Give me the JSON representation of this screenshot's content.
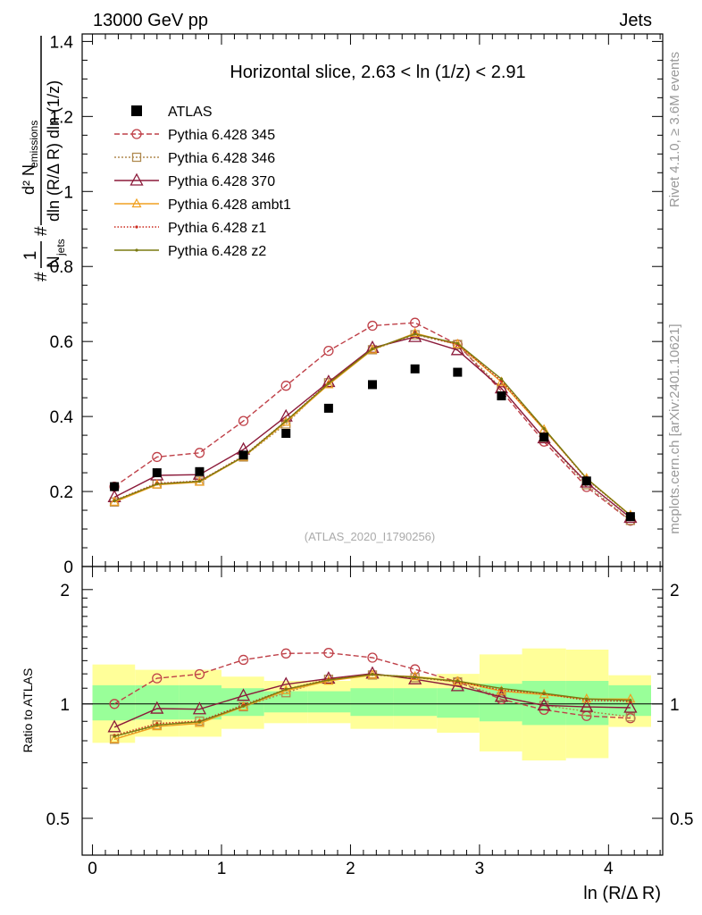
{
  "header": {
    "left": "13000 GeV pp",
    "right": "Jets"
  },
  "side_labels": {
    "rivet": "Rivet 4.1.0, ≥ 3.6M events",
    "mcplots": "mcplots.cern.ch [arXiv:2401.10621]"
  },
  "chart_data": {
    "type": "scatter",
    "title": "Horizontal slice, 2.63 < ln (1/z) < 2.91",
    "watermark": "(ATLAS_2020_I1790256)",
    "xlabel": "ln (R/Δ R)",
    "ylabel": {
      "prefix": "#",
      "frac1_num": "1",
      "frac1_den": "N",
      "frac1_den_sub": "jets",
      "mid_hash": "#",
      "frac2_num": "d² N",
      "frac2_num_sub": "emissions",
      "frac2_den": "dln (R/Δ R) dln (1/z)"
    },
    "ratio_ylabel": "Ratio to ATLAS",
    "xlim": [
      -0.08,
      4.42
    ],
    "ylim": [
      0,
      1.42
    ],
    "ratio_ylim": [
      0.4,
      2.3
    ],
    "xticks": [
      0,
      1,
      2,
      3,
      4
    ],
    "xtick_labels": [
      "0",
      "1",
      "2",
      "3",
      "4"
    ],
    "yticks": [
      0,
      0.2,
      0.4,
      0.6,
      0.8,
      1,
      1.2,
      1.4
    ],
    "ytick_labels": [
      "0",
      "0.2",
      "0.4",
      "0.6",
      "0.8",
      "1",
      "1.2",
      "1.4"
    ],
    "ratio_yticks": [
      0.5,
      1,
      2
    ],
    "ratio_ytick_labels": [
      "0.5",
      "1",
      "2"
    ],
    "x": [
      0.17,
      0.5,
      0.83,
      1.17,
      1.5,
      1.83,
      2.17,
      2.5,
      2.83,
      3.17,
      3.5,
      3.83,
      4.17
    ],
    "bin_edges": [
      0,
      0.33,
      0.67,
      1,
      1.33,
      1.67,
      2,
      2.33,
      2.67,
      3,
      3.33,
      3.67,
      4,
      4.33
    ],
    "data": {
      "name": "ATLAS",
      "values": [
        0.213,
        0.25,
        0.253,
        0.297,
        0.355,
        0.422,
        0.485,
        0.527,
        0.518,
        0.455,
        0.345,
        0.228,
        0.133
      ],
      "band_inner": [
        [
          0.905,
          1.12
        ],
        [
          0.91,
          1.12
        ],
        [
          0.91,
          1.12
        ],
        [
          0.93,
          1.1
        ],
        [
          0.95,
          1.08
        ],
        [
          0.95,
          1.08
        ],
        [
          0.93,
          1.1
        ],
        [
          0.93,
          1.1
        ],
        [
          0.92,
          1.1
        ],
        [
          0.9,
          1.13
        ],
        [
          0.88,
          1.15
        ],
        [
          0.88,
          1.15
        ],
        [
          0.93,
          1.12
        ]
      ],
      "band_outer": [
        [
          0.79,
          1.27
        ],
        [
          0.82,
          1.23
        ],
        [
          0.82,
          1.23
        ],
        [
          0.86,
          1.18
        ],
        [
          0.89,
          1.15
        ],
        [
          0.89,
          1.15
        ],
        [
          0.86,
          1.18
        ],
        [
          0.86,
          1.18
        ],
        [
          0.84,
          1.2
        ],
        [
          0.75,
          1.35
        ],
        [
          0.71,
          1.4
        ],
        [
          0.72,
          1.39
        ],
        [
          0.87,
          1.19
        ]
      ]
    },
    "series": [
      {
        "name": "Pythia 6.428 345",
        "color": "#bf4048",
        "dash": "6,3",
        "marker": "circle",
        "values": [
          0.213,
          0.292,
          0.303,
          0.388,
          0.482,
          0.575,
          0.642,
          0.65,
          0.592,
          0.468,
          0.333,
          0.212,
          0.122
        ]
      },
      {
        "name": "Pythia 6.428 346",
        "color": "#b08a50",
        "dash": "2,2",
        "marker": "square",
        "values": [
          0.172,
          0.22,
          0.228,
          0.292,
          0.38,
          0.49,
          0.578,
          0.618,
          0.592,
          0.475,
          0.342,
          0.218,
          0.123
        ]
      },
      {
        "name": "Pythia 6.428 370",
        "color": "#8b1a3a",
        "dash": "",
        "marker": "triangle",
        "values": [
          0.185,
          0.243,
          0.245,
          0.312,
          0.4,
          0.492,
          0.583,
          0.612,
          0.577,
          0.475,
          0.342,
          0.224,
          0.13
        ]
      },
      {
        "name": "Pythia 6.428 ambt1",
        "color": "#f0a020",
        "dash": "",
        "marker": "triangle-small",
        "values": [
          0.172,
          0.218,
          0.225,
          0.292,
          0.385,
          0.485,
          0.578,
          0.622,
          0.593,
          0.492,
          0.365,
          0.235,
          0.137
        ]
      },
      {
        "name": "Pythia 6.428 z1",
        "color": "#cc2a1e",
        "dash": "1.5,2",
        "marker": "dot",
        "values": [
          0.176,
          0.222,
          0.228,
          0.295,
          0.388,
          0.49,
          0.58,
          0.62,
          0.592,
          0.495,
          0.367,
          0.233,
          0.135
        ]
      },
      {
        "name": "Pythia 6.428 z2",
        "color": "#7a7a10",
        "dash": "",
        "marker": "dot",
        "values": [
          0.175,
          0.22,
          0.227,
          0.293,
          0.388,
          0.488,
          0.58,
          0.62,
          0.595,
          0.5,
          0.368,
          0.235,
          0.136
        ]
      }
    ]
  }
}
